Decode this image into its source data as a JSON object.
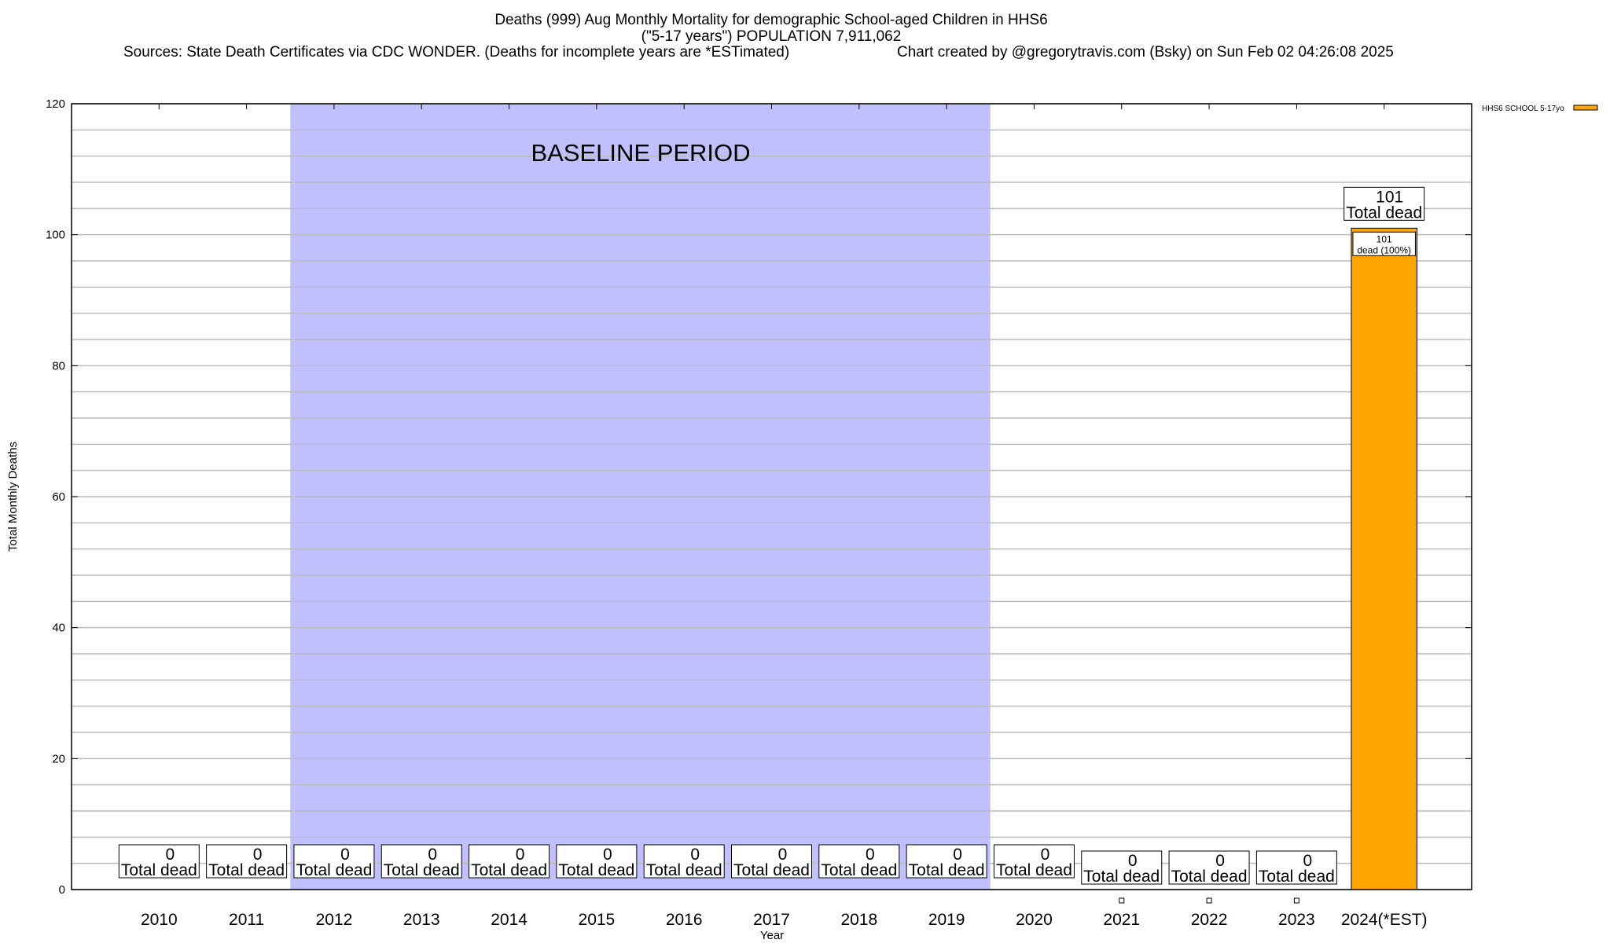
{
  "chart_data": {
    "type": "bar",
    "title_lines": [
      "Deaths (999) Aug Monthly Mortality for demographic School-aged Children in HHS6",
      "(\"5-17 years\") POPULATION 7,911,062"
    ],
    "sources": "Sources: State Death Certificates via CDC WONDER. (Deaths for incomplete years are *ESTimated)",
    "credit": "Chart created by @gregorytravis.com (Bsky) on Sun Feb 02 04:26:08 2025",
    "xlabel": "Year",
    "ylabel": "Total Monthly Deaths",
    "ylim": [
      0,
      120
    ],
    "yticks": [
      0,
      20,
      40,
      60,
      80,
      100,
      120
    ],
    "grid": true,
    "minor_grid_step": 4,
    "legend_placement": "top-right outside",
    "categories": [
      "2010",
      "2011",
      "2012",
      "2013",
      "2014",
      "2015",
      "2016",
      "2017",
      "2018",
      "2019",
      "2020",
      "2021",
      "2022",
      "2023",
      "2024(*EST)"
    ],
    "series": [
      {
        "name": "HHS6 SCHOOL 5-17yo",
        "color": "#FFA500",
        "values": [
          0,
          0,
          0,
          0,
          0,
          0,
          0,
          0,
          0,
          0,
          0,
          0,
          0,
          0,
          101
        ]
      }
    ],
    "total_labels": [
      "0",
      "0",
      "0",
      "0",
      "0",
      "0",
      "0",
      "0",
      "0",
      "0",
      "0",
      "0",
      "0",
      "0",
      "101"
    ],
    "total_suffix": "Total dead",
    "segment_label": {
      "category": "2024(*EST)",
      "value": "101",
      "text": "dead (100%)"
    },
    "baseline": {
      "label": "BASELINE PERIOD",
      "from": "2012",
      "to": "2019",
      "color": "#C0C0FF"
    }
  }
}
